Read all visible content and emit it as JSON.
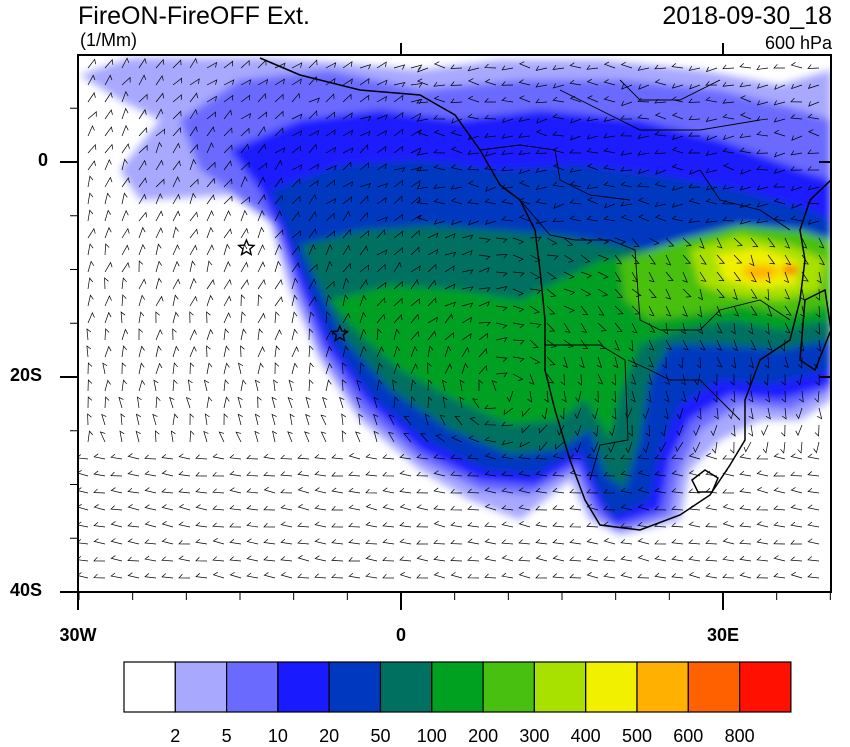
{
  "header": {
    "title": "FireON-FireOFF Ext.",
    "units": "(1/Mm)",
    "datetime": "2018-09-30_18",
    "level": "600 hPa"
  },
  "axes": {
    "lat_labels": [
      "0",
      "20S",
      "40S"
    ],
    "lon_labels": [
      "30W",
      "0",
      "30E"
    ]
  },
  "legend": {
    "colors": [
      "#ffffff",
      "#a8a8ff",
      "#6a6aff",
      "#1a1aff",
      "#0038c0",
      "#007060",
      "#00a020",
      "#48c010",
      "#a8e000",
      "#f0f000",
      "#ffb000",
      "#ff6000",
      "#ff1000"
    ],
    "labels": [
      "2",
      "5",
      "10",
      "20",
      "50",
      "100",
      "200",
      "300",
      "400",
      "500",
      "600",
      "800"
    ]
  },
  "markers": [
    {
      "name": "station-star-north",
      "lon": -14.4,
      "lat": -8.0
    },
    {
      "name": "station-star-south",
      "lon": -5.7,
      "lat": -16.0
    }
  ]
}
